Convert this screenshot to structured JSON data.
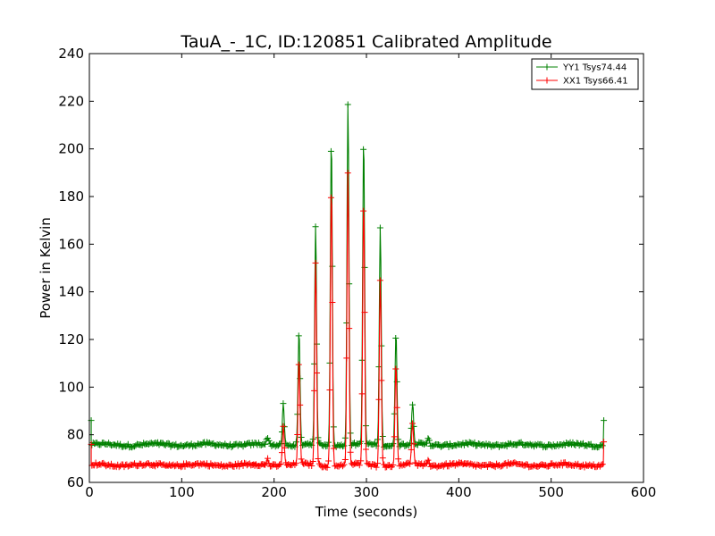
{
  "chart_data": {
    "type": "line",
    "title": "TauA_-_1C, ID:120851 Calibrated Amplitude",
    "xlabel": "Time (seconds)",
    "ylabel": "Power in Kelvin",
    "xlim": [
      0,
      600
    ],
    "ylim": [
      60,
      240
    ],
    "xticks": [
      0,
      100,
      200,
      300,
      400,
      500,
      600
    ],
    "yticks": [
      60,
      80,
      100,
      120,
      140,
      160,
      180,
      200,
      220,
      240
    ],
    "xtick_labels": [
      "0",
      "100",
      "200",
      "300",
      "400",
      "500",
      "600"
    ],
    "ytick_labels": [
      "60",
      "80",
      "100",
      "120",
      "140",
      "160",
      "180",
      "200",
      "220",
      "240"
    ],
    "legend_position": "top-right",
    "x_range": [
      2,
      557
    ],
    "series": [
      {
        "name": "YY1 Tsys74.44",
        "color": "#008000",
        "baseline": 75.8,
        "start_value": 86,
        "end_value": 86,
        "peaks": [
          {
            "x": 193,
            "y": 79
          },
          {
            "x": 210,
            "y": 93
          },
          {
            "x": 227,
            "y": 123
          },
          {
            "x": 245,
            "y": 167
          },
          {
            "x": 262,
            "y": 205
          },
          {
            "x": 280,
            "y": 220
          },
          {
            "x": 297,
            "y": 204
          },
          {
            "x": 315,
            "y": 167
          },
          {
            "x": 332,
            "y": 123
          },
          {
            "x": 350,
            "y": 93
          },
          {
            "x": 367,
            "y": 79
          }
        ]
      },
      {
        "name": "XX1 Tsys66.41",
        "color": "#ff0000",
        "baseline": 67.3,
        "start_value": 76,
        "end_value": 77,
        "peaks": [
          {
            "x": 193,
            "y": 70
          },
          {
            "x": 210,
            "y": 84
          },
          {
            "x": 227,
            "y": 111
          },
          {
            "x": 245,
            "y": 152
          },
          {
            "x": 262,
            "y": 185
          },
          {
            "x": 280,
            "y": 190
          },
          {
            "x": 297,
            "y": 178
          },
          {
            "x": 315,
            "y": 146
          },
          {
            "x": 332,
            "y": 109
          },
          {
            "x": 350,
            "y": 85
          },
          {
            "x": 367,
            "y": 70
          }
        ]
      }
    ]
  }
}
